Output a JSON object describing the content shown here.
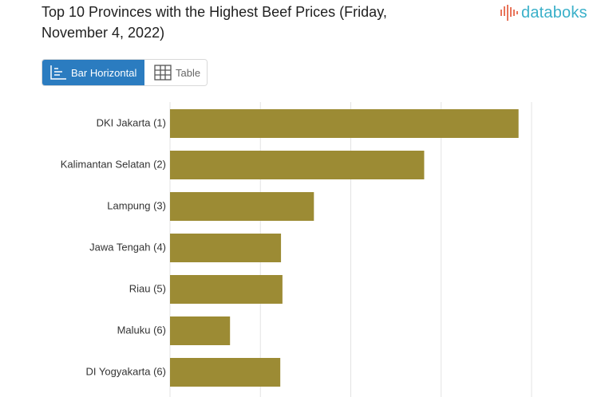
{
  "header": {
    "title": "Top 10 Provinces with the Highest Beef Prices (Friday, November 4, 2022)",
    "brand": "databoks"
  },
  "view_toggle": {
    "bar_label": "Bar Horizontal",
    "table_label": "Table",
    "active": "bar"
  },
  "colors": {
    "bar": "#9c8b34",
    "accent": "#2b7cc0",
    "brand": "#3ab0c9",
    "brand_icon": "#e8745a"
  },
  "icons": {
    "bar_tab": "horizontal-bar-chart-icon",
    "table_tab": "table-grid-icon",
    "logo": "databoks-logo-icon"
  },
  "chart_data": {
    "type": "bar",
    "orientation": "horizontal",
    "categories": [
      "DKI Jakarta (1)",
      "Kalimantan Selatan (2)",
      "Lampung (3)",
      "Jawa Tengah (4)",
      "Riau (5)",
      "Maluku (6)",
      "DI Yogyakarta (6)"
    ],
    "values": [
      143640,
      141030,
      137980,
      137070,
      137110,
      135660,
      137050
    ],
    "xlim": [
      134000,
      144000
    ],
    "grid": true,
    "legend": "none",
    "title": "Top 10 Provinces with the Highest Beef Prices (Friday, November 4, 2022)"
  }
}
